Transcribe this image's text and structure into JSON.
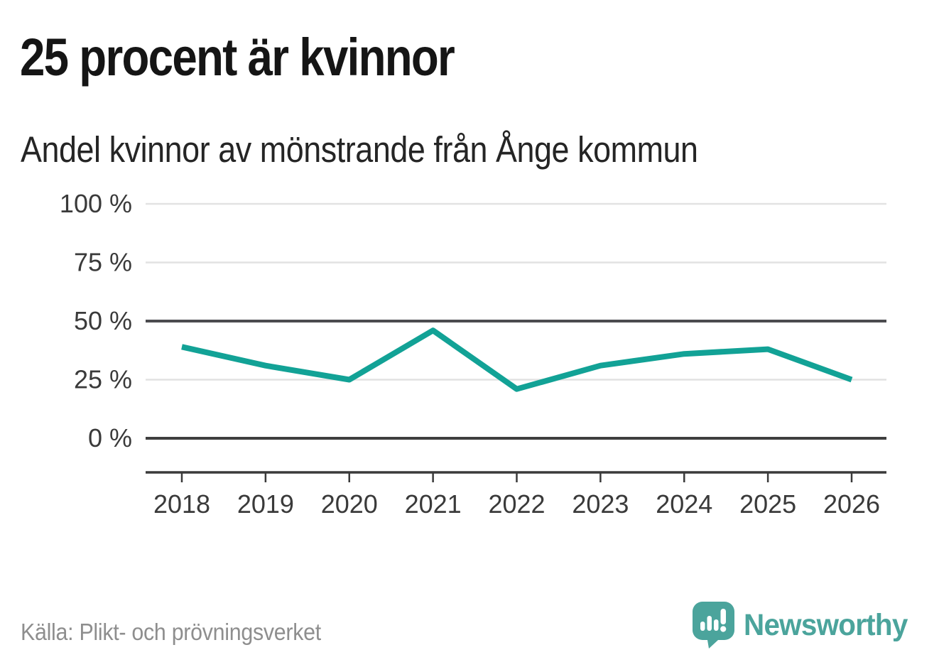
{
  "chart_data": {
    "type": "line",
    "title": "25 procent är kvinnor",
    "subtitle": "Andel kvinnor av mönstrande från Ånge kommun",
    "x": [
      "2018",
      "2019",
      "2020",
      "2021",
      "2022",
      "2023",
      "2024",
      "2025",
      "2026"
    ],
    "series": [
      {
        "name": "Andel kvinnor av mönstrande",
        "values": [
          39,
          31,
          25,
          46,
          21,
          31,
          36,
          38,
          25
        ]
      }
    ],
    "unit": "%",
    "ylim": [
      0,
      100
    ],
    "yticks": [
      {
        "value": 100,
        "label": "100 %",
        "emphasized": false
      },
      {
        "value": 75,
        "label": "75 %",
        "emphasized": false
      },
      {
        "value": 50,
        "label": "50 %",
        "emphasized": true
      },
      {
        "value": 25,
        "label": "25 %",
        "emphasized": false
      },
      {
        "value": 0,
        "label": "0 %",
        "emphasized": true
      }
    ],
    "grid": true,
    "legend": "none",
    "colors": {
      "line": "#12a296",
      "grid_light": "#e2e2e2",
      "grid_dark": "#4b4b4f",
      "baseline": "#3f3f3f",
      "axis": "#3a3a3a"
    }
  },
  "footer": {
    "source": "Källa: Plikt- och prövningsverket",
    "logo_text": "Newsworthy",
    "logo_color": "#4ba49c"
  }
}
